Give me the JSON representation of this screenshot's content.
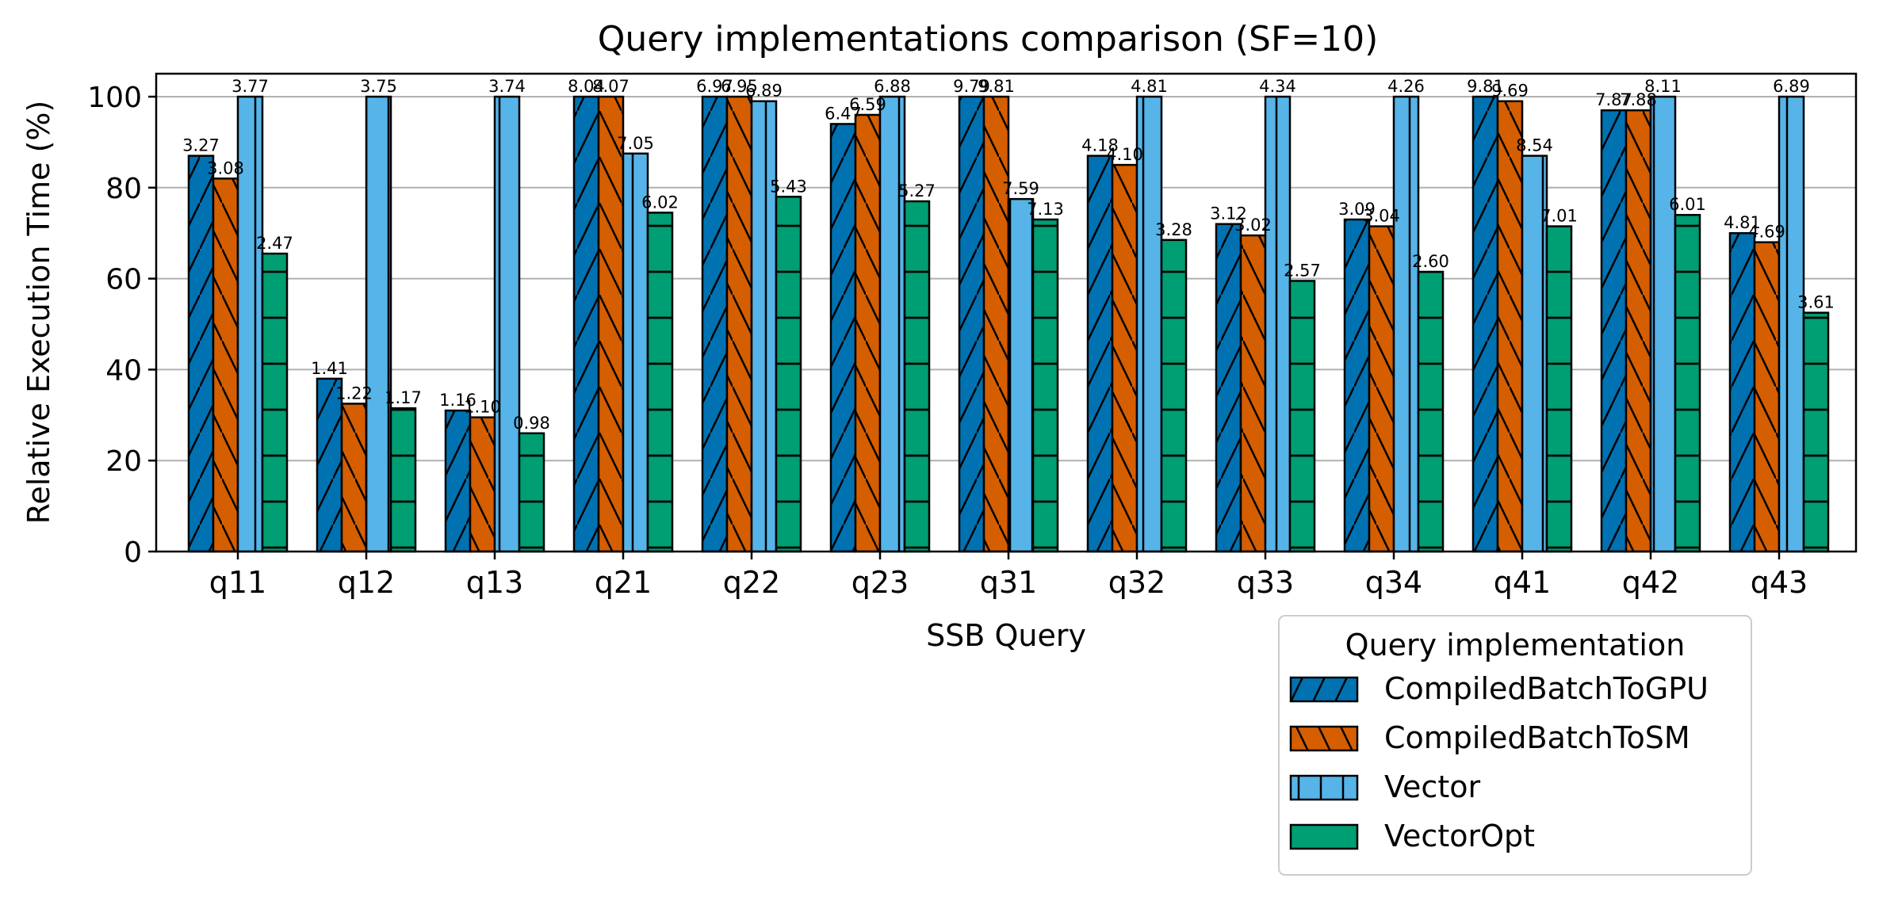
{
  "chart_data": {
    "type": "bar",
    "title": "Query implementations comparison (SF=10)",
    "xlabel": "SSB Query",
    "ylabel": "Relative Execution Time (%)",
    "ylim": [
      0,
      105
    ],
    "yticks": [
      0,
      20,
      40,
      60,
      80,
      100
    ],
    "grid": "horizontal",
    "legend_title": "Query implementation",
    "legend_position": "bottom-right",
    "categories": [
      "q11",
      "q12",
      "q13",
      "q21",
      "q22",
      "q23",
      "q31",
      "q32",
      "q33",
      "q34",
      "q41",
      "q42",
      "q43"
    ],
    "series": [
      {
        "name": "CompiledBatchToGPU",
        "color": "#0072B2",
        "hatch": "forward-slash",
        "values": [
          87,
          38,
          31,
          100,
          100,
          94,
          100,
          87,
          72,
          73,
          100,
          97,
          70
        ],
        "labels": [
          "3.27",
          "1.41",
          "1.16",
          "8.04",
          "6.97",
          "6.47",
          "9.79",
          "4.18",
          "3.12",
          "3.09",
          "9.81",
          "7.87",
          "4.81"
        ]
      },
      {
        "name": "CompiledBatchToSM",
        "color": "#D55E00",
        "hatch": "back-slash",
        "values": [
          82,
          32.5,
          29.5,
          100,
          100,
          96,
          100,
          85,
          69.5,
          71.5,
          99,
          97,
          68
        ],
        "labels": [
          "3.08",
          "1.22",
          "1.10",
          "8.07",
          "6.95",
          "6.59",
          "9.81",
          "4.10",
          "3.02",
          "3.04",
          "9.69",
          "7.88",
          "4.69"
        ]
      },
      {
        "name": "Vector",
        "color": "#56B4E9",
        "hatch": "vertical",
        "values": [
          100,
          100,
          100,
          87.5,
          99,
          100,
          77.5,
          100,
          100,
          100,
          87,
          100,
          100
        ],
        "labels": [
          "3.77",
          "3.75",
          "3.74",
          "7.05",
          "6.89",
          "6.88",
          "7.59",
          "4.81",
          "4.34",
          "4.26",
          "8.54",
          "8.11",
          "6.89"
        ]
      },
      {
        "name": "VectorOpt",
        "color": "#009E73",
        "hatch": "horizontal",
        "values": [
          65.5,
          31.5,
          26,
          74.5,
          78,
          77,
          73,
          68.5,
          59.5,
          61.5,
          71.5,
          74,
          52.5
        ],
        "labels": [
          "2.47",
          "1.17",
          "0.98",
          "6.02",
          "5.43",
          "5.27",
          "7.13",
          "3.28",
          "2.57",
          "2.60",
          "7.01",
          "6.01",
          "3.61"
        ]
      }
    ]
  }
}
